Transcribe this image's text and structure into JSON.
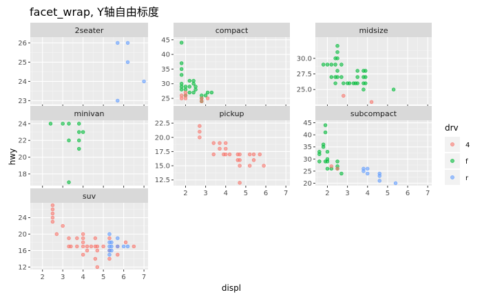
{
  "chart_data": {
    "type": "scatter",
    "title": "facet_wrap, Y轴自由标度",
    "xlabel": "displ",
    "ylabel": "hwy",
    "x_ticks": [
      2,
      3,
      4,
      5,
      6,
      7
    ],
    "xlim": [
      1.4,
      7.2
    ],
    "legend": {
      "title": "drv",
      "position": "right",
      "entries": [
        {
          "label": "4",
          "color": "#F8766D"
        },
        {
          "label": "f",
          "color": "#00BA38"
        },
        {
          "label": "r",
          "color": "#619CFF"
        }
      ]
    },
    "panels": [
      {
        "name": "2seater",
        "ylim": [
          22.8,
          26.3
        ],
        "y_ticks": [
          23,
          24,
          25,
          26
        ],
        "points": [
          {
            "x": 5.7,
            "y": 26,
            "drv": "r"
          },
          {
            "x": 6.2,
            "y": 26,
            "drv": "r"
          },
          {
            "x": 6.2,
            "y": 25,
            "drv": "r"
          },
          {
            "x": 7.0,
            "y": 24,
            "drv": "r"
          },
          {
            "x": 5.7,
            "y": 23,
            "drv": "r"
          }
        ]
      },
      {
        "name": "compact",
        "ylim": [
          22.9,
          45.9
        ],
        "y_ticks": [
          25,
          30,
          35,
          40,
          45
        ],
        "points": [
          {
            "x": 1.8,
            "y": 44,
            "drv": "f"
          },
          {
            "x": 1.8,
            "y": 37,
            "drv": "f"
          },
          {
            "x": 1.8,
            "y": 35,
            "drv": "f"
          },
          {
            "x": 1.8,
            "y": 33,
            "drv": "f"
          },
          {
            "x": 1.8,
            "y": 30,
            "drv": "f"
          },
          {
            "x": 1.8,
            "y": 29,
            "drv": "f"
          },
          {
            "x": 1.8,
            "y": 28,
            "drv": "f"
          },
          {
            "x": 2.0,
            "y": 29,
            "drv": "f"
          },
          {
            "x": 2.0,
            "y": 28,
            "drv": "f"
          },
          {
            "x": 2.0,
            "y": 26,
            "drv": "f"
          },
          {
            "x": 2.2,
            "y": 31,
            "drv": "f"
          },
          {
            "x": 2.2,
            "y": 29,
            "drv": "f"
          },
          {
            "x": 2.2,
            "y": 27,
            "drv": "f"
          },
          {
            "x": 2.4,
            "y": 31,
            "drv": "f"
          },
          {
            "x": 2.4,
            "y": 30,
            "drv": "f"
          },
          {
            "x": 2.4,
            "y": 27,
            "drv": "f"
          },
          {
            "x": 2.5,
            "y": 29,
            "drv": "f"
          },
          {
            "x": 2.5,
            "y": 28,
            "drv": "f"
          },
          {
            "x": 2.8,
            "y": 26,
            "drv": "f"
          },
          {
            "x": 2.8,
            "y": 25,
            "drv": "f"
          },
          {
            "x": 2.8,
            "y": 24,
            "drv": "f"
          },
          {
            "x": 3.0,
            "y": 26,
            "drv": "f"
          },
          {
            "x": 3.1,
            "y": 27,
            "drv": "f"
          },
          {
            "x": 3.3,
            "y": 27,
            "drv": "f"
          },
          {
            "x": 1.8,
            "y": 26,
            "drv": "4"
          },
          {
            "x": 1.8,
            "y": 25,
            "drv": "4"
          },
          {
            "x": 2.0,
            "y": 27,
            "drv": "4"
          },
          {
            "x": 2.0,
            "y": 26,
            "drv": "4"
          },
          {
            "x": 2.0,
            "y": 25,
            "drv": "4"
          },
          {
            "x": 2.8,
            "y": 25,
            "drv": "4"
          },
          {
            "x": 2.8,
            "y": 24,
            "drv": "4"
          },
          {
            "x": 3.1,
            "y": 25,
            "drv": "4"
          }
        ]
      },
      {
        "name": "midsize",
        "ylim": [
          22.6,
          33.4
        ],
        "y_ticks": [
          25.0,
          27.5,
          30.0
        ],
        "y_tick_labels": [
          "25.0",
          "27.5",
          "30.0"
        ],
        "points": [
          {
            "x": 1.8,
            "y": 29,
            "drv": "f"
          },
          {
            "x": 2.0,
            "y": 29,
            "drv": "f"
          },
          {
            "x": 2.2,
            "y": 29,
            "drv": "f"
          },
          {
            "x": 2.2,
            "y": 27,
            "drv": "f"
          },
          {
            "x": 2.4,
            "y": 30,
            "drv": "f"
          },
          {
            "x": 2.4,
            "y": 29,
            "drv": "f"
          },
          {
            "x": 2.4,
            "y": 27,
            "drv": "f"
          },
          {
            "x": 2.4,
            "y": 26,
            "drv": "f"
          },
          {
            "x": 2.5,
            "y": 32,
            "drv": "f"
          },
          {
            "x": 2.5,
            "y": 31,
            "drv": "f"
          },
          {
            "x": 2.5,
            "y": 30,
            "drv": "f"
          },
          {
            "x": 2.5,
            "y": 28,
            "drv": "f"
          },
          {
            "x": 2.5,
            "y": 27,
            "drv": "f"
          },
          {
            "x": 2.7,
            "y": 29,
            "drv": "f"
          },
          {
            "x": 2.7,
            "y": 27,
            "drv": "f"
          },
          {
            "x": 2.8,
            "y": 26,
            "drv": "f"
          },
          {
            "x": 3.0,
            "y": 26,
            "drv": "f"
          },
          {
            "x": 3.1,
            "y": 26,
            "drv": "f"
          },
          {
            "x": 3.3,
            "y": 26,
            "drv": "f"
          },
          {
            "x": 3.4,
            "y": 26,
            "drv": "f"
          },
          {
            "x": 3.5,
            "y": 28,
            "drv": "f"
          },
          {
            "x": 3.5,
            "y": 27,
            "drv": "f"
          },
          {
            "x": 3.5,
            "y": 26,
            "drv": "f"
          },
          {
            "x": 3.8,
            "y": 28,
            "drv": "f"
          },
          {
            "x": 3.8,
            "y": 27,
            "drv": "f"
          },
          {
            "x": 3.8,
            "y": 26,
            "drv": "f"
          },
          {
            "x": 3.8,
            "y": 25,
            "drv": "f"
          },
          {
            "x": 3.9,
            "y": 26,
            "drv": "f"
          },
          {
            "x": 3.9,
            "y": 27,
            "drv": "f"
          },
          {
            "x": 3.9,
            "y": 28,
            "drv": "f"
          },
          {
            "x": 5.3,
            "y": 25,
            "drv": "f"
          },
          {
            "x": 2.8,
            "y": 24,
            "drv": "4"
          },
          {
            "x": 4.2,
            "y": 23,
            "drv": "4"
          }
        ]
      },
      {
        "name": "minivan",
        "ylim": [
          16.6,
          24.4
        ],
        "y_ticks": [
          18,
          20,
          22,
          24
        ],
        "points": [
          {
            "x": 2.4,
            "y": 24,
            "drv": "f"
          },
          {
            "x": 3.0,
            "y": 24,
            "drv": "f"
          },
          {
            "x": 3.3,
            "y": 24,
            "drv": "f"
          },
          {
            "x": 3.3,
            "y": 22,
            "drv": "f"
          },
          {
            "x": 3.3,
            "y": 17,
            "drv": "f"
          },
          {
            "x": 3.8,
            "y": 24,
            "drv": "f"
          },
          {
            "x": 3.8,
            "y": 23,
            "drv": "f"
          },
          {
            "x": 3.8,
            "y": 22,
            "drv": "f"
          },
          {
            "x": 3.8,
            "y": 21,
            "drv": "f"
          },
          {
            "x": 4.0,
            "y": 23,
            "drv": "f"
          }
        ]
      },
      {
        "name": "pickup",
        "ylim": [
          11.5,
          23.0
        ],
        "y_ticks": [
          12.5,
          15.0,
          17.5,
          20.0,
          22.5
        ],
        "y_tick_labels": [
          "12.5",
          "15.0",
          "17.5",
          "20.0",
          "22.5"
        ],
        "points": [
          {
            "x": 2.7,
            "y": 22,
            "drv": "4"
          },
          {
            "x": 2.7,
            "y": 21,
            "drv": "4"
          },
          {
            "x": 2.7,
            "y": 20,
            "drv": "4"
          },
          {
            "x": 3.4,
            "y": 19,
            "drv": "4"
          },
          {
            "x": 3.4,
            "y": 17,
            "drv": "4"
          },
          {
            "x": 3.7,
            "y": 19,
            "drv": "4"
          },
          {
            "x": 3.7,
            "y": 18,
            "drv": "4"
          },
          {
            "x": 3.9,
            "y": 17,
            "drv": "4"
          },
          {
            "x": 4.0,
            "y": 19,
            "drv": "4"
          },
          {
            "x": 4.0,
            "y": 18,
            "drv": "4"
          },
          {
            "x": 4.0,
            "y": 17,
            "drv": "4"
          },
          {
            "x": 4.2,
            "y": 17,
            "drv": "4"
          },
          {
            "x": 4.6,
            "y": 17,
            "drv": "4"
          },
          {
            "x": 4.6,
            "y": 16,
            "drv": "4"
          },
          {
            "x": 4.7,
            "y": 17,
            "drv": "4"
          },
          {
            "x": 4.7,
            "y": 16,
            "drv": "4"
          },
          {
            "x": 4.7,
            "y": 15,
            "drv": "4"
          },
          {
            "x": 4.7,
            "y": 12,
            "drv": "4"
          },
          {
            "x": 5.2,
            "y": 17,
            "drv": "4"
          },
          {
            "x": 5.2,
            "y": 15,
            "drv": "4"
          },
          {
            "x": 5.4,
            "y": 17,
            "drv": "4"
          },
          {
            "x": 5.4,
            "y": 16,
            "drv": "4"
          },
          {
            "x": 5.7,
            "y": 17,
            "drv": "4"
          },
          {
            "x": 5.9,
            "y": 15,
            "drv": "4"
          }
        ]
      },
      {
        "name": "subcompact",
        "ylim": [
          19.0,
          46.0
        ],
        "y_ticks": [
          20,
          25,
          30,
          35,
          40,
          45
        ],
        "points": [
          {
            "x": 1.6,
            "y": 33,
            "drv": "f"
          },
          {
            "x": 1.6,
            "y": 32,
            "drv": "f"
          },
          {
            "x": 1.6,
            "y": 29,
            "drv": "f"
          },
          {
            "x": 1.8,
            "y": 36,
            "drv": "f"
          },
          {
            "x": 1.8,
            "y": 35,
            "drv": "f"
          },
          {
            "x": 1.9,
            "y": 44,
            "drv": "f"
          },
          {
            "x": 1.9,
            "y": 41,
            "drv": "f"
          },
          {
            "x": 1.9,
            "y": 29,
            "drv": "f"
          },
          {
            "x": 2.0,
            "y": 33,
            "drv": "f"
          },
          {
            "x": 2.0,
            "y": 30,
            "drv": "f"
          },
          {
            "x": 2.0,
            "y": 29,
            "drv": "f"
          },
          {
            "x": 2.0,
            "y": 26,
            "drv": "f"
          },
          {
            "x": 2.2,
            "y": 26,
            "drv": "f"
          },
          {
            "x": 2.5,
            "y": 29,
            "drv": "f"
          },
          {
            "x": 2.5,
            "y": 27,
            "drv": "f"
          },
          {
            "x": 2.5,
            "y": 26,
            "drv": "f"
          },
          {
            "x": 2.7,
            "y": 24,
            "drv": "f"
          },
          {
            "x": 2.2,
            "y": 27,
            "drv": "4"
          },
          {
            "x": 2.5,
            "y": 26,
            "drv": "4"
          },
          {
            "x": 3.8,
            "y": 26,
            "drv": "r"
          },
          {
            "x": 3.8,
            "y": 25,
            "drv": "r"
          },
          {
            "x": 4.0,
            "y": 26,
            "drv": "r"
          },
          {
            "x": 4.0,
            "y": 24,
            "drv": "r"
          },
          {
            "x": 4.6,
            "y": 24,
            "drv": "r"
          },
          {
            "x": 4.6,
            "y": 23,
            "drv": "r"
          },
          {
            "x": 4.6,
            "y": 21,
            "drv": "r"
          },
          {
            "x": 5.4,
            "y": 20,
            "drv": "r"
          }
        ]
      },
      {
        "name": "suv",
        "ylim": [
          11.4,
          27.6
        ],
        "y_ticks": [
          12,
          16,
          20,
          24
        ],
        "points": [
          {
            "x": 2.5,
            "y": 27,
            "drv": "4"
          },
          {
            "x": 2.5,
            "y": 26,
            "drv": "4"
          },
          {
            "x": 2.5,
            "y": 25,
            "drv": "4"
          },
          {
            "x": 2.5,
            "y": 24,
            "drv": "4"
          },
          {
            "x": 2.5,
            "y": 23,
            "drv": "4"
          },
          {
            "x": 2.7,
            "y": 20,
            "drv": "4"
          },
          {
            "x": 3.0,
            "y": 22,
            "drv": "4"
          },
          {
            "x": 3.3,
            "y": 19,
            "drv": "4"
          },
          {
            "x": 3.3,
            "y": 17,
            "drv": "4"
          },
          {
            "x": 3.4,
            "y": 17,
            "drv": "4"
          },
          {
            "x": 3.7,
            "y": 19,
            "drv": "4"
          },
          {
            "x": 3.7,
            "y": 17,
            "drv": "4"
          },
          {
            "x": 4.0,
            "y": 20,
            "drv": "4"
          },
          {
            "x": 4.0,
            "y": 19,
            "drv": "4"
          },
          {
            "x": 4.0,
            "y": 18,
            "drv": "4"
          },
          {
            "x": 4.0,
            "y": 17,
            "drv": "4"
          },
          {
            "x": 4.0,
            "y": 15,
            "drv": "4"
          },
          {
            "x": 4.2,
            "y": 17,
            "drv": "4"
          },
          {
            "x": 4.2,
            "y": 16,
            "drv": "4"
          },
          {
            "x": 4.4,
            "y": 17,
            "drv": "4"
          },
          {
            "x": 4.6,
            "y": 17,
            "drv": "4"
          },
          {
            "x": 4.6,
            "y": 19,
            "drv": "4"
          },
          {
            "x": 4.6,
            "y": 14,
            "drv": "4"
          },
          {
            "x": 4.7,
            "y": 17,
            "drv": "4"
          },
          {
            "x": 4.7,
            "y": 16,
            "drv": "4"
          },
          {
            "x": 4.7,
            "y": 12,
            "drv": "4"
          },
          {
            "x": 5.0,
            "y": 17,
            "drv": "4"
          },
          {
            "x": 5.3,
            "y": 19,
            "drv": "4"
          },
          {
            "x": 5.3,
            "y": 16,
            "drv": "4"
          },
          {
            "x": 5.3,
            "y": 14,
            "drv": "4"
          },
          {
            "x": 5.7,
            "y": 15,
            "drv": "4"
          },
          {
            "x": 5.7,
            "y": 17,
            "drv": "4"
          },
          {
            "x": 6.1,
            "y": 18,
            "drv": "4"
          },
          {
            "x": 6.5,
            "y": 17,
            "drv": "4"
          },
          {
            "x": 5.3,
            "y": 20,
            "drv": "r"
          },
          {
            "x": 5.3,
            "y": 18,
            "drv": "r"
          },
          {
            "x": 5.3,
            "y": 17,
            "drv": "r"
          },
          {
            "x": 5.3,
            "y": 16,
            "drv": "r"
          },
          {
            "x": 5.3,
            "y": 15,
            "drv": "r"
          },
          {
            "x": 5.4,
            "y": 18,
            "drv": "r"
          },
          {
            "x": 5.4,
            "y": 17,
            "drv": "r"
          },
          {
            "x": 5.4,
            "y": 16,
            "drv": "r"
          },
          {
            "x": 5.7,
            "y": 17,
            "drv": "r"
          },
          {
            "x": 5.7,
            "y": 19,
            "drv": "r"
          },
          {
            "x": 6.0,
            "y": 17,
            "drv": "r"
          },
          {
            "x": 6.2,
            "y": 17,
            "drv": "r"
          }
        ]
      }
    ]
  }
}
